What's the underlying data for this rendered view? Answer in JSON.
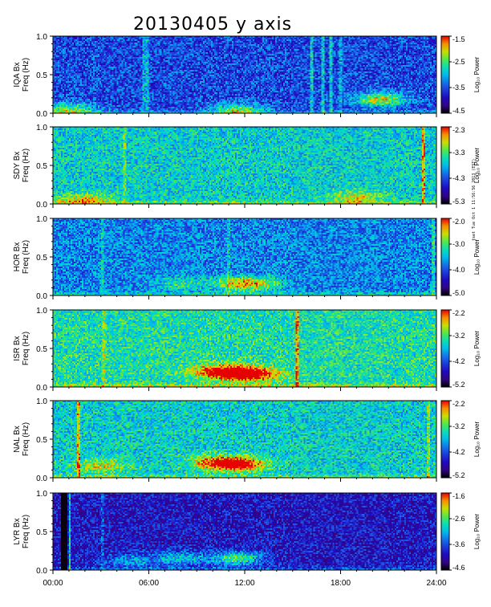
{
  "figure": {
    "title": "20130405 y axis",
    "stamp": "tset Tue Oct 1 11:56:56 2013 (EST)"
  },
  "chart_data": [
    {
      "type": "heatmap",
      "station": "IQA",
      "ylabel_top": "IQA Bx",
      "ylabel_bottom": "Freq (Hz)",
      "cbar_label": "Log₁₀ Power",
      "cbar_ticks": [
        "-1.5",
        "-2.5",
        "-3.5",
        "-4.5"
      ],
      "clim": [
        -4.5,
        -1.5
      ],
      "ylim": [
        0,
        1.0
      ],
      "yticks": [
        "0.0",
        "0.5",
        "1.0"
      ],
      "xlim_hours": [
        0,
        24
      ],
      "noise_level": 0.32,
      "bursts": [
        {
          "t": 11.5,
          "f": 0.04,
          "amp": 0.4
        },
        {
          "t": 20.5,
          "f": 0.18,
          "amp": 0.5
        },
        {
          "t": 1.0,
          "f": 0.05,
          "amp": 0.4
        }
      ],
      "dark_columns": [],
      "bright_lines": [
        {
          "t": 16.2,
          "amp": 0.25
        },
        {
          "t": 16.9,
          "amp": 0.25
        },
        {
          "t": 17.4,
          "amp": 0.25
        },
        {
          "t": 18.0,
          "amp": 0.2
        },
        {
          "t": 5.7,
          "amp": 0.2
        },
        {
          "t": 5.9,
          "amp": 0.2
        }
      ]
    },
    {
      "type": "heatmap",
      "station": "SDY",
      "ylabel_top": "SDY Bx",
      "ylabel_bottom": "Freq (Hz)",
      "cbar_label": "Log₁₀ Power",
      "cbar_ticks": [
        "-2.3",
        "-3.3",
        "-4.3",
        "-5.3"
      ],
      "clim": [
        -5.3,
        -2.3
      ],
      "ylim": [
        0,
        1.0
      ],
      "yticks": [
        "0.0",
        "0.5",
        "1.0"
      ],
      "xlim_hours": [
        0,
        24
      ],
      "noise_level": 0.55,
      "bursts": [
        {
          "t": 19.0,
          "f": 0.08,
          "amp": 0.25
        },
        {
          "t": 2.0,
          "f": 0.04,
          "amp": 0.3
        }
      ],
      "dark_columns": [],
      "bright_lines": [
        {
          "t": 23.2,
          "amp": 0.35
        },
        {
          "t": 4.5,
          "amp": 0.15
        }
      ]
    },
    {
      "type": "heatmap",
      "station": "HOR",
      "ylabel_top": "HOR Bx",
      "ylabel_bottom": "Freq (Hz)",
      "cbar_label": "Log₁₀ Power",
      "cbar_ticks": [
        "-2.0",
        "-3.0",
        "-4.0",
        "-5.0"
      ],
      "clim": [
        -5.0,
        -2.0
      ],
      "ylim": [
        0,
        1.0
      ],
      "yticks": [
        "0.0",
        "0.5",
        "1.0"
      ],
      "xlim_hours": [
        0,
        24
      ],
      "noise_level": 0.42,
      "bursts": [
        {
          "t": 11.5,
          "f": 0.15,
          "amp": 0.35
        },
        {
          "t": 8.0,
          "f": 0.15,
          "amp": 0.2
        },
        {
          "t": 13.0,
          "f": 0.15,
          "amp": 0.25
        }
      ],
      "dark_columns": [],
      "bright_lines": [
        {
          "t": 3.1,
          "amp": 0.15
        },
        {
          "t": 11.0,
          "amp": 0.12
        },
        {
          "t": 23.8,
          "amp": 0.2
        }
      ]
    },
    {
      "type": "heatmap",
      "station": "ISR",
      "ylabel_top": "ISR Bx",
      "ylabel_bottom": "Freq (Hz)",
      "cbar_label": "Log₁₀ Power",
      "cbar_ticks": [
        "-2.2",
        "-3.2",
        "-4.2",
        "-5.2"
      ],
      "clim": [
        -5.2,
        -2.2
      ],
      "ylim": [
        0,
        1.0
      ],
      "yticks": [
        "0.0",
        "0.5",
        "1.0"
      ],
      "xlim_hours": [
        0,
        24
      ],
      "noise_level": 0.6,
      "bursts": [
        {
          "t": 11.6,
          "f": 0.18,
          "amp": 0.55
        },
        {
          "t": 10.0,
          "f": 0.2,
          "amp": 0.3
        },
        {
          "t": 13.0,
          "f": 0.15,
          "amp": 0.25
        }
      ],
      "dark_columns": [],
      "bright_lines": [
        {
          "t": 15.3,
          "amp": 0.35
        },
        {
          "t": 3.2,
          "amp": 0.15
        }
      ]
    },
    {
      "type": "heatmap",
      "station": "NAL",
      "ylabel_top": "NAL Bx",
      "ylabel_bottom": "Freq (Hz)",
      "cbar_label": "Log₁₀ Power",
      "cbar_ticks": [
        "-2.2",
        "-3.2",
        "-4.2",
        "-5.2"
      ],
      "clim": [
        -5.2,
        -2.2
      ],
      "ylim": [
        0,
        1.0
      ],
      "yticks": [
        "0.0",
        "0.5",
        "1.0"
      ],
      "xlim_hours": [
        0,
        24
      ],
      "noise_level": 0.55,
      "bursts": [
        {
          "t": 11.6,
          "f": 0.18,
          "amp": 0.55
        },
        {
          "t": 10.0,
          "f": 0.2,
          "amp": 0.3
        },
        {
          "t": 3.0,
          "f": 0.15,
          "amp": 0.25
        }
      ],
      "dark_columns": [],
      "bright_lines": [
        {
          "t": 1.6,
          "amp": 0.35
        },
        {
          "t": 23.5,
          "amp": 0.2
        }
      ]
    },
    {
      "type": "heatmap",
      "station": "LYR",
      "ylabel_top": "LYR Bx",
      "ylabel_bottom": "Freq (Hz)",
      "cbar_label": "Log₁₀ Power",
      "cbar_ticks": [
        "-1.6",
        "-2.6",
        "-3.6",
        "-4.6"
      ],
      "clim": [
        -4.6,
        -1.6
      ],
      "ylim": [
        0,
        1.0
      ],
      "yticks": [
        "0.0",
        "0.5",
        "1.0"
      ],
      "xlim_hours": [
        0,
        24
      ],
      "noise_level": 0.22,
      "bursts": [
        {
          "t": 11.5,
          "f": 0.15,
          "amp": 0.45
        },
        {
          "t": 8.0,
          "f": 0.15,
          "amp": 0.3
        },
        {
          "t": 5.0,
          "f": 0.12,
          "amp": 0.25
        }
      ],
      "dark_columns": [
        {
          "t0": 0.55,
          "t1": 0.9
        }
      ],
      "bright_lines": [
        {
          "t": 1.05,
          "amp": 0.4
        },
        {
          "t": 3.1,
          "amp": 0.15
        }
      ]
    }
  ],
  "xaxis": {
    "ticks": [
      "00:00",
      "06:00",
      "12:00",
      "18:00",
      "24:00"
    ],
    "tick_hours": [
      0,
      6,
      12,
      18,
      24
    ]
  }
}
